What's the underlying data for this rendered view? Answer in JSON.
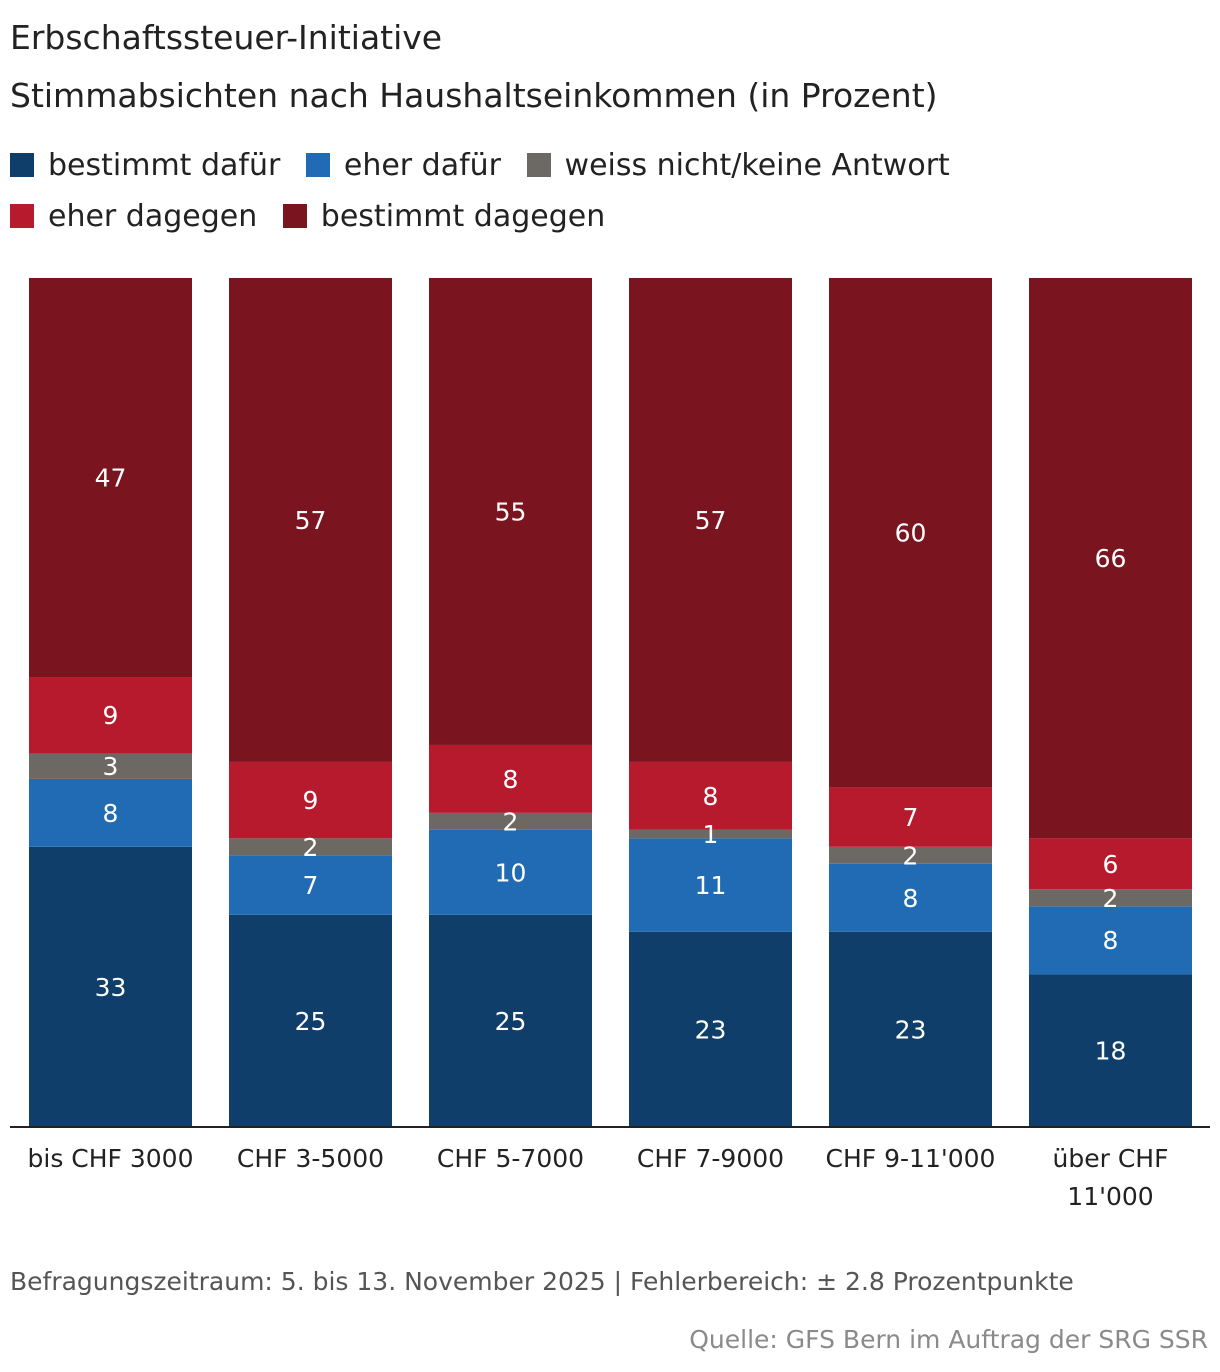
{
  "header": {
    "title": "Erbschaftssteuer-Initiative",
    "subtitle": "Stimmabsichten nach Haushaltseinkommen (in Prozent)"
  },
  "footer": {
    "note": "Befragungszeitraum: 5. bis 13. November 2025 | Fehlerbereich: ± 2.8 Prozentpunkte",
    "source": "Quelle: GFS Bern im Auftrag der SRG SSR"
  },
  "chart_data": {
    "type": "bar",
    "stacked": true,
    "title": "Erbschaftssteuer-Initiative",
    "subtitle": "Stimmabsichten nach Haushaltseinkommen (in Prozent)",
    "categories": [
      "bis CHF 3000",
      "CHF 3-5000",
      "CHF 5-7000",
      "CHF 7-9000",
      "CHF 9-11'000",
      "über CHF 11'000"
    ],
    "series": [
      {
        "name": "bestimmt dafür",
        "color": "#0e3e69",
        "values": [
          33,
          25,
          25,
          23,
          23,
          18
        ]
      },
      {
        "name": "eher dafür",
        "color": "#206bb4",
        "values": [
          8,
          7,
          10,
          11,
          8,
          8
        ]
      },
      {
        "name": "weiss nicht/keine Antwort",
        "color": "#6c6964",
        "values": [
          3,
          2,
          2,
          1,
          2,
          2
        ]
      },
      {
        "name": "eher dagegen",
        "color": "#b81a2d",
        "values": [
          9,
          9,
          8,
          8,
          7,
          6
        ]
      },
      {
        "name": "bestimmt dagegen",
        "color": "#7a141f",
        "values": [
          47,
          57,
          55,
          57,
          60,
          66
        ]
      }
    ],
    "ylim": [
      0,
      100
    ],
    "grid": false,
    "legend": "top-left"
  }
}
